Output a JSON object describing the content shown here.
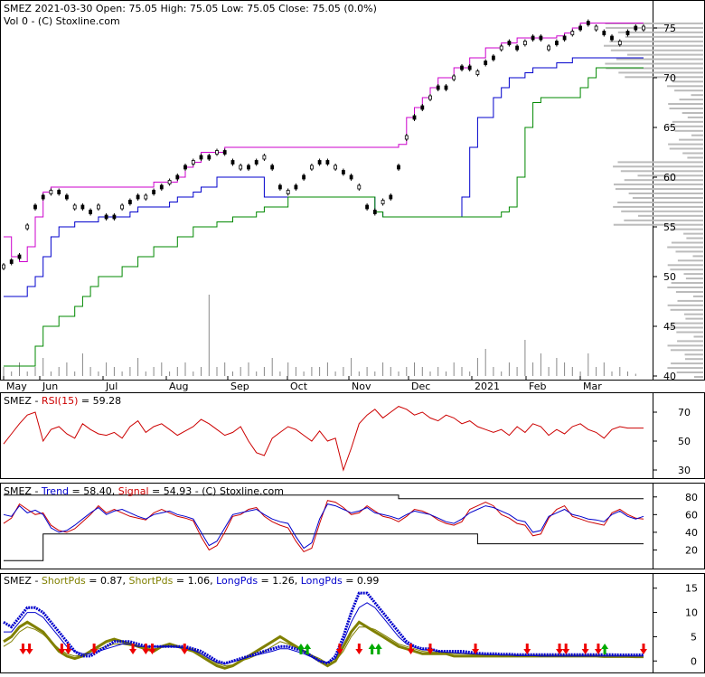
{
  "header": {
    "line1": "SMEZ  2021-03-30 Open: 75.05  High: 75.05  Low: 75.05  Close: 75.05 (0.0%)",
    "line2": "Vol 0   - (C) Stoxline.com"
  },
  "colors": {
    "price": "#000000",
    "upper_channel": "#cc00cc",
    "lower_channel_blue": "#0000cc",
    "lower_channel_green": "#008800",
    "rsi": "#cc0000",
    "trend": "#0000cc",
    "signal": "#cc0000",
    "short_pds": "#808000",
    "long_pds": "#0000cc",
    "volume": "#888888",
    "volume_profile": "#bbbbbb",
    "sell_arrow": "#ee0000",
    "buy_arrow": "#00aa00"
  },
  "panels": {
    "rsi": {
      "label_prefix": "SMEZ - ",
      "label_rsi": "RSI(15)",
      "label_value": " = 59.28"
    },
    "trend": {
      "label_prefix": "SMEZ - ",
      "label_trend": "Trend",
      "label_trend_value": " = 58.40, ",
      "label_signal": "Signal",
      "label_signal_value": " = 54.93",
      "label_suffix": " - (C) Stoxline.com"
    },
    "pds": {
      "label_prefix": "SMEZ - ",
      "label_short1": "ShortPds",
      "label_short1_value": " = 0.87, ",
      "label_short2": "ShortPds",
      "label_short2_value": " = 1.06, ",
      "label_long1": "LongPds",
      "label_long1_value": " = 1.26, ",
      "label_long2": "LongPds",
      "label_long2_value": " = 0.99"
    }
  },
  "chart_data": [
    {
      "type": "candlestick",
      "name": "price",
      "x_labels": [
        "May",
        "Jun",
        "Jul",
        "Aug",
        "Sep",
        "Oct",
        "Nov",
        "Dec",
        "2021",
        "Feb",
        "Mar"
      ],
      "ylim": [
        40,
        76
      ],
      "yticks": [
        40,
        45,
        50,
        55,
        60,
        65,
        70,
        75
      ],
      "close_series": [
        51,
        51.5,
        52,
        55,
        57,
        58,
        58.5,
        58.5,
        58,
        57,
        57,
        56.5,
        57,
        56,
        56,
        57,
        57.5,
        58,
        58,
        58.5,
        59,
        59.5,
        60,
        61,
        61.5,
        62,
        62,
        62.5,
        62.5,
        61.5,
        61,
        61,
        61.5,
        62,
        61,
        59,
        58.5,
        59,
        60,
        61,
        61.5,
        61.5,
        61,
        60.5,
        60,
        59,
        57,
        56.5,
        57.5,
        58,
        61,
        64,
        66,
        67,
        68,
        69,
        69,
        70,
        71,
        71,
        70.5,
        71.5,
        72,
        73,
        73.5,
        73,
        73.5,
        74,
        74,
        73,
        73.5,
        74,
        74.5,
        75,
        75.5,
        75,
        74.5,
        74,
        73.5,
        74.5,
        75,
        75
      ],
      "upper_channel": [
        54,
        52,
        51.5,
        53,
        56,
        58.5,
        59,
        59,
        59,
        59,
        59,
        59,
        59,
        59,
        59,
        59,
        59,
        59,
        59,
        59.5,
        59.5,
        59.5,
        60,
        61,
        61.5,
        62.5,
        62.5,
        62.5,
        63,
        63,
        63,
        63,
        63,
        63,
        63,
        63,
        63,
        63,
        63,
        63,
        63,
        63,
        63,
        63,
        63,
        63,
        63,
        63,
        63,
        63,
        63.3,
        66,
        67,
        68,
        69,
        70,
        70,
        71,
        71,
        72,
        72,
        73,
        73,
        73.5,
        73.5,
        74,
        74,
        74,
        74,
        74,
        74.2,
        74.5,
        75,
        75.5,
        75.5,
        75.5,
        75.5,
        75.5,
        75.5,
        75.5,
        75.5,
        75.5
      ],
      "lower_channel_blue": [
        48,
        48,
        48,
        49,
        50,
        52,
        54,
        55,
        55,
        55.5,
        55.5,
        55.5,
        56,
        56,
        56,
        56,
        56.5,
        57,
        57,
        57,
        57,
        57.5,
        58,
        58,
        58.5,
        59,
        59,
        60,
        60,
        60,
        60,
        60,
        60,
        58,
        58,
        58,
        58,
        58,
        58,
        58,
        58,
        58,
        58,
        58,
        58,
        58,
        58,
        56.5,
        56,
        56,
        56,
        56,
        56,
        56,
        56,
        56,
        56,
        56,
        58,
        63,
        66,
        66,
        68,
        69,
        70,
        70,
        70.5,
        71,
        71,
        71,
        71.5,
        71.5,
        72,
        72,
        72,
        72,
        72,
        72,
        72,
        72,
        72,
        72
      ],
      "lower_channel_green": [
        41,
        41,
        41,
        41,
        43,
        45,
        45,
        46,
        46,
        47,
        48,
        49,
        50,
        50,
        50,
        51,
        51,
        52,
        52,
        53,
        53,
        53,
        54,
        54,
        55,
        55,
        55,
        55.5,
        55.5,
        56,
        56,
        56,
        56.5,
        57,
        57,
        57,
        58,
        58,
        58,
        58,
        58,
        58,
        58,
        58,
        58,
        58,
        58,
        56.5,
        56,
        56,
        56,
        56,
        56,
        56,
        56,
        56,
        56,
        56,
        56,
        56,
        56,
        56,
        56,
        56.5,
        57,
        60,
        65,
        67.5,
        68,
        68,
        68,
        68,
        68,
        69,
        70,
        71,
        71,
        71,
        71,
        71,
        71,
        71
      ],
      "volume_series": [
        2,
        1,
        3,
        1,
        2,
        4,
        1,
        2,
        3,
        1,
        5,
        2,
        1,
        3,
        2,
        1,
        2,
        4,
        1,
        2,
        3,
        1,
        2,
        3,
        1,
        2,
        18,
        2,
        3,
        1,
        2,
        3,
        1,
        2,
        4,
        1,
        3,
        2,
        1,
        2,
        2,
        3,
        1,
        2,
        4,
        1,
        2,
        1,
        3,
        2,
        1,
        2,
        3,
        2,
        1,
        2,
        1,
        3,
        2,
        1,
        4,
        6,
        2,
        1,
        3,
        2,
        8,
        3,
        5,
        2,
        4,
        3,
        2,
        1,
        5,
        2,
        3,
        1,
        2,
        1,
        0.5,
        0
      ]
    },
    {
      "type": "line",
      "name": "rsi",
      "ylim": [
        25,
        80
      ],
      "yticks": [
        30,
        50,
        70
      ],
      "values": [
        48,
        55,
        62,
        68,
        70,
        50,
        58,
        60,
        55,
        52,
        62,
        58,
        55,
        54,
        56,
        52,
        60,
        64,
        56,
        60,
        62,
        58,
        54,
        57,
        60,
        65,
        62,
        58,
        54,
        56,
        60,
        50,
        42,
        40,
        52,
        56,
        60,
        58,
        54,
        50,
        57,
        50,
        52,
        30,
        45,
        62,
        68,
        72,
        66,
        70,
        74,
        72,
        68,
        70,
        66,
        64,
        68,
        66,
        62,
        64,
        60,
        58,
        56,
        58,
        54,
        60,
        56,
        62,
        60,
        54,
        58,
        55,
        60,
        62,
        58,
        56,
        52,
        58,
        60,
        59,
        59,
        59
      ]
    },
    {
      "type": "line",
      "name": "trend",
      "ylim": [
        0,
        90
      ],
      "yticks": [
        20,
        40,
        60,
        80
      ],
      "series": [
        {
          "name": "Trend",
          "values": [
            60,
            58,
            70,
            62,
            65,
            60,
            45,
            40,
            42,
            48,
            55,
            62,
            68,
            60,
            64,
            66,
            62,
            58,
            55,
            60,
            62,
            64,
            60,
            58,
            55,
            40,
            25,
            30,
            45,
            60,
            62,
            64,
            66,
            60,
            55,
            52,
            50,
            35,
            22,
            28,
            55,
            72,
            70,
            66,
            62,
            64,
            68,
            62,
            60,
            58,
            55,
            60,
            64,
            62,
            60,
            56,
            52,
            50,
            55,
            62,
            66,
            70,
            68,
            64,
            60,
            54,
            52,
            40,
            42,
            58,
            62,
            66,
            60,
            58,
            55,
            54,
            52,
            60,
            64,
            58,
            55,
            58
          ]
        },
        {
          "name": "Signal",
          "values": [
            50,
            56,
            72,
            66,
            60,
            62,
            48,
            42,
            40,
            44,
            52,
            60,
            70,
            62,
            66,
            62,
            58,
            56,
            54,
            62,
            66,
            62,
            58,
            56,
            53,
            35,
            20,
            25,
            40,
            58,
            60,
            66,
            68,
            58,
            52,
            48,
            45,
            30,
            18,
            22,
            50,
            76,
            74,
            68,
            60,
            62,
            70,
            64,
            58,
            56,
            52,
            58,
            66,
            64,
            60,
            54,
            50,
            48,
            52,
            66,
            70,
            74,
            70,
            60,
            56,
            50,
            48,
            36,
            38,
            56,
            66,
            70,
            58,
            55,
            52,
            50,
            48,
            62,
            66,
            60,
            56,
            55
          ]
        }
      ]
    },
    {
      "type": "line",
      "name": "pds",
      "ylim": [
        -2,
        17
      ],
      "yticks": [
        0,
        5,
        10,
        15
      ],
      "series": [
        {
          "name": "ShortPds",
          "values": [
            4,
            5,
            7,
            8,
            7,
            6,
            4,
            2,
            1,
            0.5,
            1,
            2,
            3,
            4,
            4.5,
            4,
            3.5,
            3,
            2.5,
            2,
            3,
            3.5,
            3,
            2.5,
            2,
            1,
            0,
            -1,
            -1.5,
            -1,
            0,
            1,
            2,
            3,
            4,
            5,
            4,
            3,
            2,
            1,
            0,
            -1,
            0,
            3,
            6,
            8,
            7,
            6,
            5,
            4,
            3,
            2.5,
            2,
            1.5,
            1.5,
            1.5,
            1.5,
            1,
            1,
            1,
            1,
            1,
            1,
            1,
            1,
            1,
            1,
            1,
            1,
            1,
            1,
            1,
            1,
            1,
            1,
            1,
            0.9,
            0.9,
            0.9,
            0.9,
            0.87,
            0.87
          ]
        },
        {
          "name": "ShortPds",
          "values": [
            3,
            4,
            6,
            7,
            6.5,
            5.5,
            4,
            2.5,
            1.5,
            1,
            1.2,
            2,
            2.5,
            3,
            3.5,
            3.5,
            3.2,
            3,
            2.8,
            2.5,
            2.8,
            3,
            3,
            2.8,
            2.5,
            1.5,
            0.5,
            -0.5,
            -1,
            -0.8,
            0,
            0.5,
            1.2,
            2,
            3,
            4,
            3.5,
            2.8,
            2,
            1.2,
            0.5,
            -0.5,
            0,
            2,
            5,
            7,
            7,
            6.5,
            5.5,
            4.5,
            3.5,
            3,
            2.5,
            2,
            1.8,
            1.8,
            1.8,
            1.5,
            1.5,
            1.4,
            1.3,
            1.3,
            1.2,
            1.2,
            1.2,
            1.2,
            1.1,
            1.1,
            1.1,
            1.1,
            1.1,
            1.1,
            1.1,
            1.1,
            1.1,
            1.1,
            1.1,
            1.1,
            1.06,
            1.06,
            1.06,
            1.06
          ]
        },
        {
          "name": "LongPds",
          "values": [
            8,
            7,
            9,
            11,
            11,
            10,
            8,
            6,
            4,
            2,
            1,
            1,
            2,
            3,
            4,
            4,
            4,
            3.5,
            3,
            3,
            3,
            3,
            3,
            3,
            2.5,
            2,
            1,
            0,
            -0.5,
            0,
            0.5,
            1,
            1.5,
            2,
            2.5,
            3,
            3,
            2.5,
            2,
            1,
            0,
            -0.5,
            1,
            5,
            10,
            14,
            14,
            12,
            10,
            8,
            6,
            4,
            3,
            2.5,
            2.5,
            2,
            2,
            2,
            2,
            1.8,
            1.6,
            1.5,
            1.5,
            1.4,
            1.4,
            1.3,
            1.3,
            1.3,
            1.3,
            1.3,
            1.3,
            1.3,
            1.3,
            1.3,
            1.3,
            1.3,
            1.3,
            1.3,
            1.26,
            1.26,
            1.26,
            1.26
          ]
        },
        {
          "name": "LongPds",
          "values": [
            6,
            6,
            8,
            10,
            10,
            9,
            7,
            5,
            3,
            2,
            1.5,
            1.5,
            2,
            2.5,
            3,
            3.5,
            3.5,
            3,
            3,
            3,
            3,
            3,
            2.8,
            2.6,
            2.2,
            1.5,
            0.5,
            -0.3,
            -0.6,
            -0.2,
            0.3,
            0.8,
            1.2,
            1.6,
            2,
            2.5,
            2.5,
            2,
            1.5,
            0.8,
            0,
            -0.3,
            0.5,
            4,
            8,
            11,
            12,
            11,
            9,
            7,
            5,
            3.5,
            2.8,
            2.3,
            2.2,
            2,
            1.8,
            1.7,
            1.6,
            1.5,
            1.4,
            1.3,
            1.3,
            1.2,
            1.2,
            1.1,
            1.1,
            1.1,
            1.0,
            1.0,
            1.0,
            1.0,
            1.0,
            1.0,
            1.0,
            1.0,
            1.0,
            1.0,
            0.99,
            0.99,
            0.99,
            0.99
          ]
        }
      ],
      "buy_signals": [
        46,
        47,
        57,
        58,
        93
      ],
      "sell_signals": [
        3,
        4,
        9,
        10,
        14,
        20,
        22,
        23,
        28,
        52,
        55,
        63,
        66,
        73,
        81,
        86,
        87,
        90,
        92,
        99
      ]
    }
  ]
}
